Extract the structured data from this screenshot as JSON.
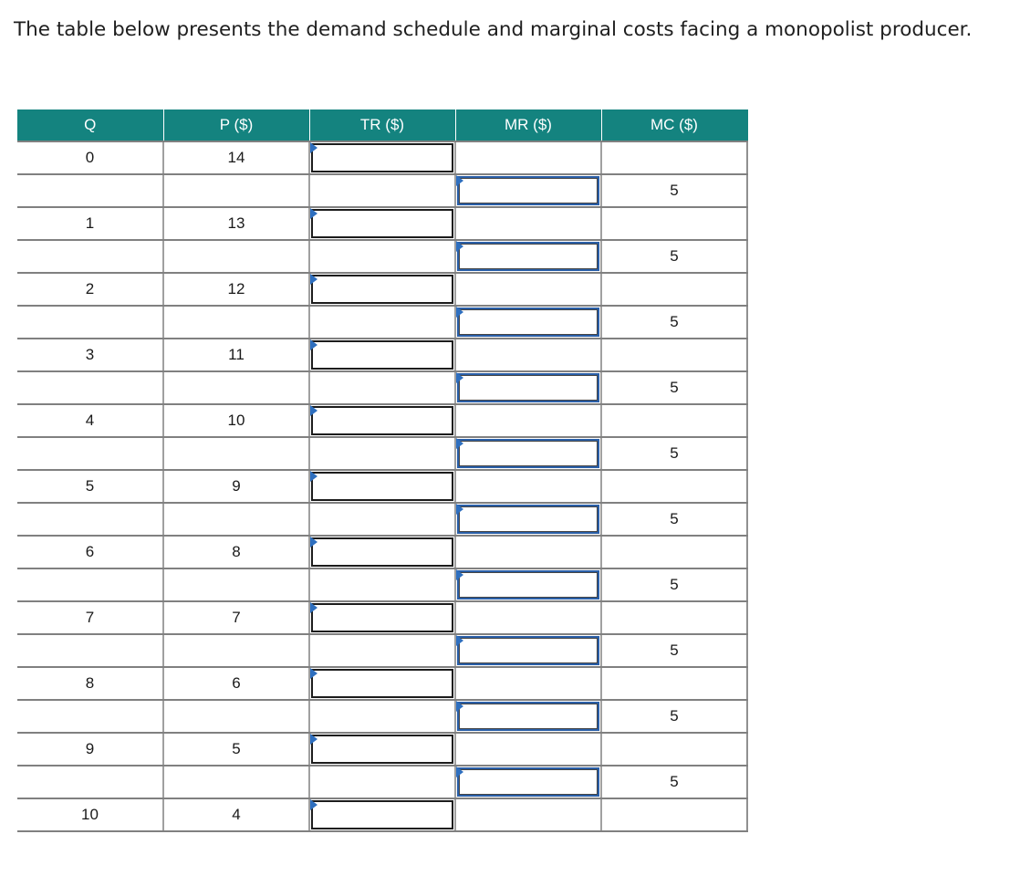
{
  "prompt_text": "The table below presents the demand schedule and marginal costs facing a monopolist producer.",
  "colors": {
    "header_bg": "#14837f",
    "input_flag": "#2e6fbf"
  },
  "table": {
    "headers": [
      "Q",
      "P ($)",
      "TR ($)",
      "MR ($)",
      "MC ($)"
    ],
    "rows": [
      {
        "q": "0",
        "p": "14",
        "tr_input": "",
        "mr_input": null,
        "mc": ""
      },
      {
        "q": "",
        "p": "",
        "tr_input": null,
        "mr_input": "",
        "mc": "5"
      },
      {
        "q": "1",
        "p": "13",
        "tr_input": "",
        "mr_input": null,
        "mc": ""
      },
      {
        "q": "",
        "p": "",
        "tr_input": null,
        "mr_input": "",
        "mc": "5"
      },
      {
        "q": "2",
        "p": "12",
        "tr_input": "",
        "mr_input": null,
        "mc": ""
      },
      {
        "q": "",
        "p": "",
        "tr_input": null,
        "mr_input": "",
        "mc": "5"
      },
      {
        "q": "3",
        "p": "11",
        "tr_input": "",
        "mr_input": null,
        "mc": ""
      },
      {
        "q": "",
        "p": "",
        "tr_input": null,
        "mr_input": "",
        "mc": "5"
      },
      {
        "q": "4",
        "p": "10",
        "tr_input": "",
        "mr_input": null,
        "mc": ""
      },
      {
        "q": "",
        "p": "",
        "tr_input": null,
        "mr_input": "",
        "mc": "5"
      },
      {
        "q": "5",
        "p": "9",
        "tr_input": "",
        "mr_input": null,
        "mc": ""
      },
      {
        "q": "",
        "p": "",
        "tr_input": null,
        "mr_input": "",
        "mc": "5"
      },
      {
        "q": "6",
        "p": "8",
        "tr_input": "",
        "mr_input": null,
        "mc": ""
      },
      {
        "q": "",
        "p": "",
        "tr_input": null,
        "mr_input": "",
        "mc": "5"
      },
      {
        "q": "7",
        "p": "7",
        "tr_input": "",
        "mr_input": null,
        "mc": ""
      },
      {
        "q": "",
        "p": "",
        "tr_input": null,
        "mr_input": "",
        "mc": "5"
      },
      {
        "q": "8",
        "p": "6",
        "tr_input": "",
        "mr_input": null,
        "mc": ""
      },
      {
        "q": "",
        "p": "",
        "tr_input": null,
        "mr_input": "",
        "mc": "5"
      },
      {
        "q": "9",
        "p": "5",
        "tr_input": "",
        "mr_input": null,
        "mc": ""
      },
      {
        "q": "",
        "p": "",
        "tr_input": null,
        "mr_input": "",
        "mc": "5"
      },
      {
        "q": "10",
        "p": "4",
        "tr_input": "",
        "mr_input": null,
        "mc": ""
      }
    ]
  }
}
